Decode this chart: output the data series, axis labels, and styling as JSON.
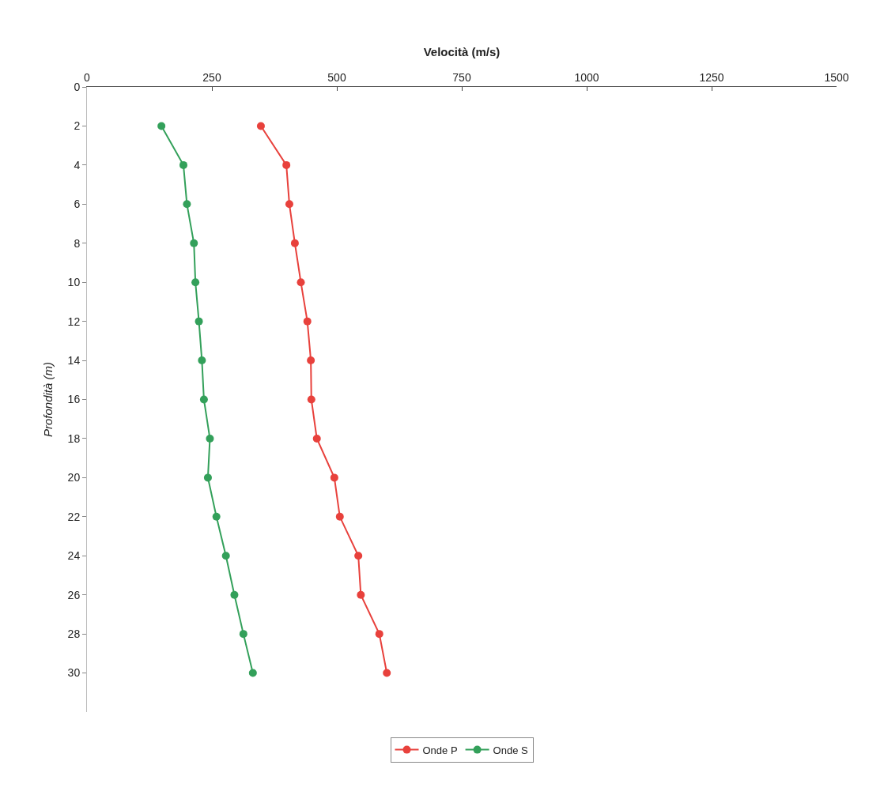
{
  "chart_data": {
    "type": "line",
    "xlabel": "Velocità (m/s)",
    "ylabel": "Profondità (m)",
    "xlim": [
      0,
      1500
    ],
    "xticks": [
      0,
      250,
      500,
      750,
      1000,
      1250,
      1500
    ],
    "ylim": [
      32,
      0
    ],
    "yticks": [
      0,
      2,
      4,
      6,
      8,
      10,
      12,
      14,
      16,
      18,
      20,
      22,
      24,
      26,
      28,
      30
    ],
    "grid": false,
    "legend": "bottom",
    "marker": "circle",
    "line_style": "solid",
    "series": [
      {
        "name": "Onde P",
        "color": "#e8413c",
        "x": [
          348,
          399,
          405,
          416,
          428,
          441,
          448,
          449,
          460,
          495,
          506,
          543,
          548,
          585,
          600
        ],
        "values": [
          2,
          4,
          6,
          8,
          10,
          12,
          14,
          16,
          18,
          20,
          22,
          24,
          26,
          28,
          30
        ]
      },
      {
        "name": "Onde S",
        "color": "#33a05a",
        "x": [
          149,
          193,
          200,
          214,
          217,
          224,
          230,
          234,
          246,
          242,
          259,
          278,
          295,
          313,
          332
        ],
        "values": [
          2,
          4,
          6,
          8,
          10,
          12,
          14,
          16,
          18,
          20,
          22,
          24,
          26,
          28,
          30
        ]
      }
    ]
  }
}
